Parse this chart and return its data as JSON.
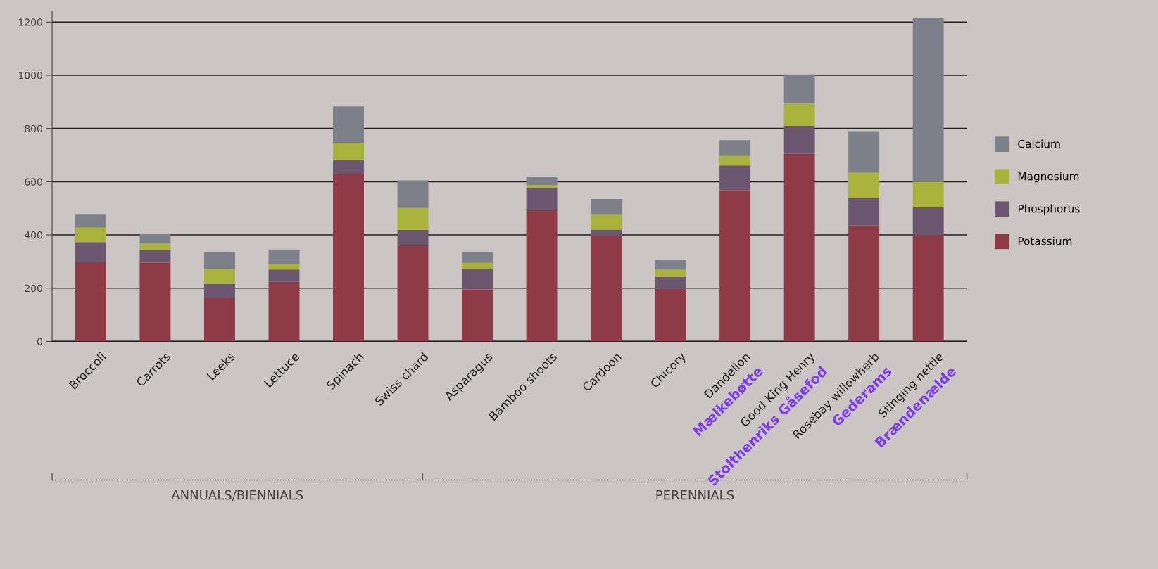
{
  "chart_data": {
    "type": "bar",
    "stacked": true,
    "categories": [
      "Broccoli",
      "Carrots",
      "Leeks",
      "Lettuce",
      "Spinach",
      "Swiss chard",
      "Asparagus",
      "Bamboo shoots",
      "Cardoon",
      "Chicory",
      "Dandelion\nMælkebøtte",
      "Good King Henry\nStolthenriks Gåsefod",
      "Rosebay willowherb\nGederams",
      "Stinging nettle\nBrændenælde"
    ],
    "series": [
      {
        "name": "Potassium",
        "color": "#8e3a47",
        "values": [
          297,
          295,
          162,
          224,
          629,
          362,
          195,
          494,
          395,
          197,
          568,
          705,
          436,
          399
        ]
      },
      {
        "name": "Phosphorus",
        "color": "#6b5670",
        "values": [
          76,
          47,
          53,
          46,
          54,
          57,
          77,
          81,
          25,
          45,
          93,
          105,
          103,
          104
        ]
      },
      {
        "name": "Magnesium",
        "color": "#a9b23a",
        "values": [
          54,
          26,
          57,
          22,
          63,
          82,
          23,
          12,
          58,
          27,
          36,
          84,
          95,
          97
        ]
      },
      {
        "name": "Calcium",
        "color": "#7d8088",
        "values": [
          52,
          36,
          63,
          53,
          137,
          104,
          40,
          32,
          57,
          38,
          59,
          109,
          156,
          617
        ]
      }
    ],
    "ylim": [
      0,
      1240
    ],
    "yticks": [
      0,
      200,
      400,
      600,
      800,
      1000,
      1200
    ],
    "grid": "y",
    "legend": "right",
    "annotations": [
      "ANNUALS/BIENNIALS",
      "PERENNIALS"
    ]
  }
}
